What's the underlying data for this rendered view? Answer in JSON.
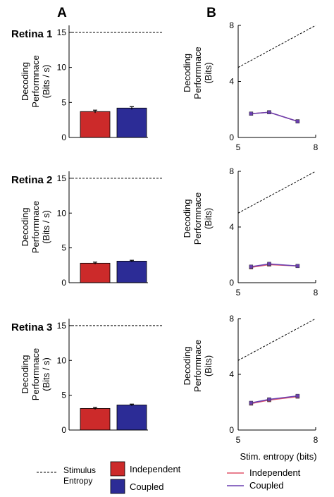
{
  "panel_labels": [
    "A",
    "B"
  ],
  "colors": {
    "independent": "#cc2a2a",
    "coupled": "#2c2c96",
    "independent_line": "#e0556a",
    "coupled_line": "#6a3fb0",
    "axis": "#000000"
  },
  "legend_a": {
    "stimulus_entropy": "Stimulus Entropy",
    "stimulus_entropy_lines": [
      "Stimulus",
      "Entropy"
    ],
    "independent": "Independent",
    "coupled": "Coupled"
  },
  "legend_b": {
    "independent": "Independent",
    "coupled": "Coupled"
  },
  "chart_data": [
    {
      "panel": "A",
      "type": "bar",
      "title": "Retina 1",
      "ylabel": "Decoding Performnace (Bits / s)",
      "ylabel_lines": [
        "Decoding",
        "Performnace",
        "(Bits / s)"
      ],
      "ylim": [
        0,
        16
      ],
      "yticks": [
        0,
        5,
        10,
        15
      ],
      "categories": [
        "Independent",
        "Coupled"
      ],
      "values": [
        3.7,
        4.2
      ],
      "errors": [
        0.2,
        0.2
      ],
      "stimulus_entropy": 15
    },
    {
      "panel": "A",
      "type": "bar",
      "title": "Retina 2",
      "ylabel": "Decoding Performnace (Bits / s)",
      "ylabel_lines": [
        "Decoding",
        "Performnace",
        "(Bits / s)"
      ],
      "ylim": [
        0,
        16
      ],
      "yticks": [
        0,
        5,
        10,
        15
      ],
      "categories": [
        "Independent",
        "Coupled"
      ],
      "values": [
        2.8,
        3.1
      ],
      "errors": [
        0.15,
        0.12
      ],
      "stimulus_entropy": 15
    },
    {
      "panel": "A",
      "type": "bar",
      "title": "Retina 3",
      "ylabel": "Decoding Performnace (Bits / s)",
      "ylabel_lines": [
        "Decoding",
        "Performnace",
        "(Bits / s)"
      ],
      "ylim": [
        0,
        16
      ],
      "yticks": [
        0,
        5,
        10,
        15
      ],
      "categories": [
        "Independent",
        "Coupled"
      ],
      "values": [
        3.1,
        3.6
      ],
      "errors": [
        0.15,
        0.12
      ],
      "stimulus_entropy": 15
    },
    {
      "panel": "B",
      "type": "line",
      "ylabel": "Decoding Performnace (Bits)",
      "ylabel_lines": [
        "Decoding",
        "Performnace",
        "(Bits)"
      ],
      "xlim": [
        5,
        8
      ],
      "ylim": [
        0,
        8
      ],
      "xticks": [
        5,
        8
      ],
      "yticks": [
        0,
        4,
        8
      ],
      "xlabel": "",
      "entropy_line": [
        [
          5,
          5
        ],
        [
          8,
          8
        ]
      ],
      "series": [
        {
          "name": "Independent",
          "x": [
            5.5,
            6.2,
            7.3
          ],
          "y": [
            1.7,
            1.8,
            1.15
          ]
        },
        {
          "name": "Coupled",
          "x": [
            5.5,
            6.2,
            7.3
          ],
          "y": [
            1.7,
            1.8,
            1.15
          ]
        }
      ]
    },
    {
      "panel": "B",
      "type": "line",
      "ylabel": "Decoding Performnace (Bits)",
      "ylabel_lines": [
        "Decoding",
        "Performnace",
        "(Bits)"
      ],
      "xlim": [
        5,
        8
      ],
      "ylim": [
        0,
        8
      ],
      "xticks": [
        5,
        8
      ],
      "yticks": [
        0,
        4,
        8
      ],
      "xlabel": "",
      "entropy_line": [
        [
          5,
          5
        ],
        [
          8,
          8
        ]
      ],
      "series": [
        {
          "name": "Independent",
          "x": [
            5.5,
            6.2,
            7.3
          ],
          "y": [
            1.1,
            1.3,
            1.2
          ]
        },
        {
          "name": "Coupled",
          "x": [
            5.5,
            6.2,
            7.3
          ],
          "y": [
            1.15,
            1.35,
            1.2
          ]
        }
      ]
    },
    {
      "panel": "B",
      "type": "line",
      "ylabel": "Decoding Performnace (Bits)",
      "ylabel_lines": [
        "Decoding",
        "Performnace",
        "(Bits)"
      ],
      "xlim": [
        5,
        8
      ],
      "ylim": [
        0,
        8
      ],
      "xticks": [
        5,
        8
      ],
      "yticks": [
        0,
        4,
        8
      ],
      "xlabel": "Stim. entropy (bits)",
      "entropy_line": [
        [
          5,
          5
        ],
        [
          8,
          8
        ]
      ],
      "series": [
        {
          "name": "Independent",
          "x": [
            5.5,
            6.2,
            7.3
          ],
          "y": [
            1.9,
            2.15,
            2.4
          ]
        },
        {
          "name": "Coupled",
          "x": [
            5.5,
            6.2,
            7.3
          ],
          "y": [
            1.95,
            2.2,
            2.45
          ]
        }
      ]
    }
  ]
}
